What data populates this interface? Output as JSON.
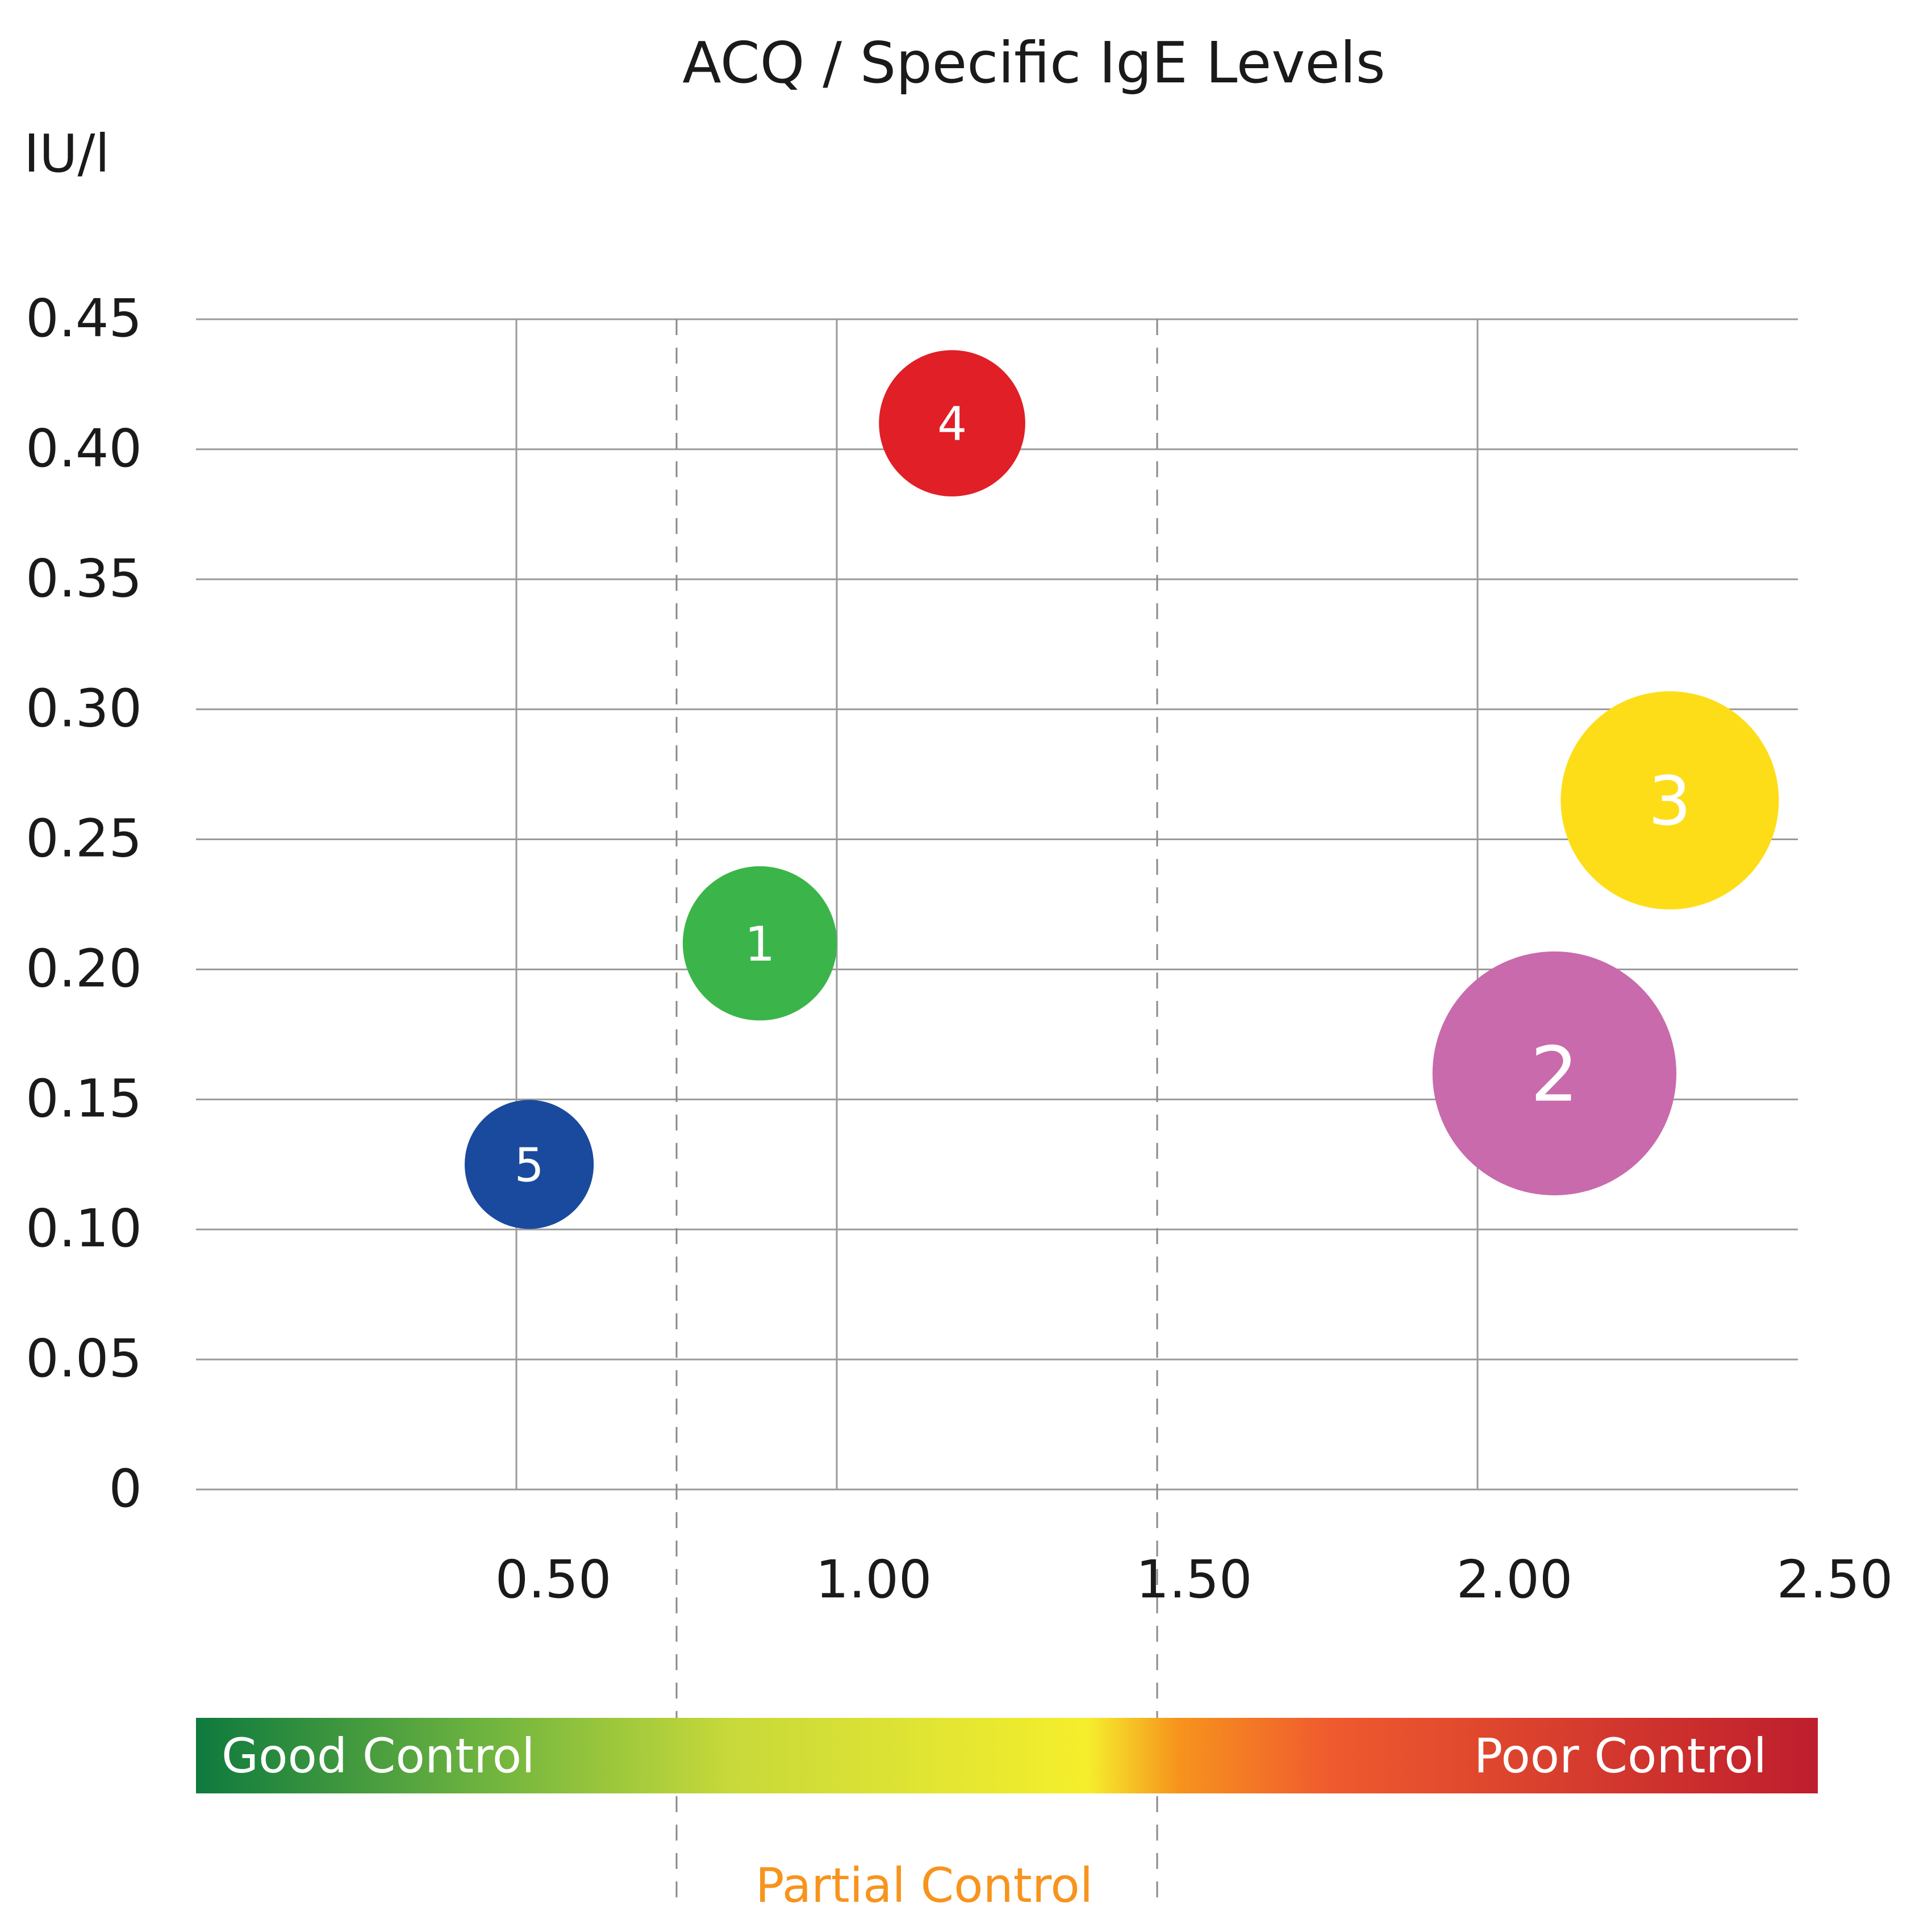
{
  "chart_data": {
    "type": "bubble",
    "title": "ACQ / Specific IgE Levels",
    "ylabel": "IU/l",
    "xlim": [
      0,
      2.5
    ],
    "ylim": [
      0,
      0.45
    ],
    "x_ticks": [
      {
        "value": 0.5,
        "label": "0.50"
      },
      {
        "value": 1.0,
        "label": "1.00"
      },
      {
        "value": 1.5,
        "label": "1.50"
      },
      {
        "value": 2.0,
        "label": "2.00"
      },
      {
        "value": 2.5,
        "label": "2.50"
      }
    ],
    "y_ticks": [
      {
        "value": 0,
        "label": "0"
      },
      {
        "value": 0.05,
        "label": "0.05"
      },
      {
        "value": 0.1,
        "label": "0.10"
      },
      {
        "value": 0.15,
        "label": "0.15"
      },
      {
        "value": 0.2,
        "label": "0.20"
      },
      {
        "value": 0.25,
        "label": "0.25"
      },
      {
        "value": 0.3,
        "label": "0.30"
      },
      {
        "value": 0.35,
        "label": "0.35"
      },
      {
        "value": 0.4,
        "label": "0.40"
      },
      {
        "value": 0.45,
        "label": "0.45"
      }
    ],
    "partial_control_bounds": [
      0.75,
      1.5
    ],
    "points": [
      {
        "label": "1",
        "x": 0.88,
        "y": 0.21,
        "size": 2,
        "color": "#3bb54a"
      },
      {
        "label": "2",
        "x": 2.12,
        "y": 0.16,
        "size": 5,
        "color": "#c86aac"
      },
      {
        "label": "3",
        "x": 2.3,
        "y": 0.265,
        "size": 4,
        "color": "#fddd18"
      },
      {
        "label": "4",
        "x": 1.18,
        "y": 0.41,
        "size": 1.8,
        "color": "#e01f26"
      },
      {
        "label": "5",
        "x": 0.52,
        "y": 0.125,
        "size": 1.4,
        "color": "#1a4a9e"
      }
    ],
    "control_scale": {
      "good_label": "Good Control",
      "partial_label": "Partial Control",
      "poor_label": "Poor Control",
      "colors": [
        "#0e7a3e",
        "#6fb43f",
        "#c8d93a",
        "#f5ee2c",
        "#f7941d",
        "#ef5a2e",
        "#be1e2d"
      ],
      "partial_color": "#f7941d"
    }
  }
}
